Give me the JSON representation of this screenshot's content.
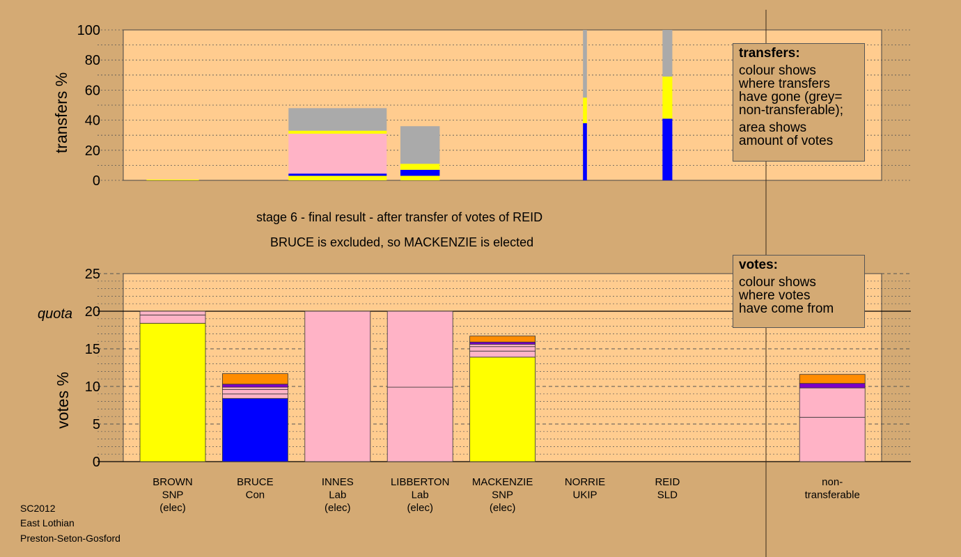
{
  "page": {
    "stage_line": "stage 6 - final result - after transfer of votes of REID",
    "result_line": "BRUCE is excluded, so MACKENZIE is elected",
    "footer": [
      "SC2012",
      "East Lothian",
      "Preston-Seton-Gosford"
    ]
  },
  "legend_transfers": {
    "title": "transfers:",
    "line1": "colour shows",
    "line2": "where transfers",
    "line3": "have gone (grey=",
    "line4": "non-transferable);",
    "line5": "area shows",
    "line6": "amount of votes"
  },
  "legend_votes": {
    "title": "votes:",
    "line1": "colour shows",
    "line2": "where votes",
    "line3": "have come from"
  },
  "colors": {
    "background": "#d4aa74",
    "plot_area": "#ffcc8f",
    "snp": "#ffff00",
    "con": "#0000ff",
    "lab": "#ffb3c6",
    "ukip": "#7b00c8",
    "sld": "#ff8c00",
    "nontransferable": "#aaaaaa"
  },
  "chart_data": [
    {
      "type": "bar",
      "name": "transfers",
      "ylabel": "transfers %",
      "ylim": [
        0,
        100
      ],
      "yticks": [
        0,
        20,
        40,
        60,
        80,
        100
      ],
      "bars": [
        {
          "column": 0,
          "width": 0.8,
          "segments": [
            {
              "color": "snp",
              "value": 0.5
            }
          ]
        },
        {
          "column": 2,
          "width": 1.5,
          "segments": [
            {
              "color": "snp",
              "value": 3
            },
            {
              "color": "con",
              "value": 1.5
            },
            {
              "color": "lab",
              "value": 26.5
            },
            {
              "color": "snp",
              "value": 2
            },
            {
              "color": "nontransferable",
              "value": 15
            }
          ]
        },
        {
          "column": 3,
          "width": 0.6,
          "segments": [
            {
              "color": "snp",
              "value": 3
            },
            {
              "color": "con",
              "value": 4
            },
            {
              "color": "snp",
              "value": 4
            },
            {
              "color": "nontransferable",
              "value": 25
            }
          ]
        },
        {
          "column": 5,
          "width": 0.06,
          "segments": [
            {
              "color": "con",
              "value": 38
            },
            {
              "color": "snp",
              "value": 17
            },
            {
              "color": "nontransferable",
              "value": 45
            }
          ]
        },
        {
          "column": 6,
          "width": 0.15,
          "segments": [
            {
              "color": "con",
              "value": 41
            },
            {
              "color": "snp",
              "value": 28
            },
            {
              "color": "nontransferable",
              "value": 31
            }
          ]
        }
      ]
    },
    {
      "type": "bar",
      "name": "votes",
      "ylabel": "votes %",
      "ylim": [
        0,
        25
      ],
      "yticks": [
        0,
        5,
        10,
        15,
        20,
        25
      ],
      "quota": 20,
      "quota_label": "quota",
      "categories": [
        [
          "BROWN",
          "SNP",
          "(elec)"
        ],
        [
          "BRUCE",
          "Con"
        ],
        [
          "INNES",
          "Lab",
          "(elec)"
        ],
        [
          "LIBBERTON",
          "Lab",
          "(elec)"
        ],
        [
          "MACKENZIE",
          "SNP",
          "(elec)"
        ],
        [
          "NORRIE",
          "UKIP"
        ],
        [
          "REID",
          "SLD"
        ],
        [],
        [
          "non-",
          "transferable"
        ]
      ],
      "stacks": [
        [
          {
            "color": "snp",
            "value": 18.4
          },
          {
            "color": "lab",
            "value": 1.1
          },
          {
            "color": "lab",
            "value": 0.5
          }
        ],
        [
          {
            "color": "con",
            "value": 8.4
          },
          {
            "color": "lab",
            "value": 0.6
          },
          {
            "color": "lab",
            "value": 0.6
          },
          {
            "color": "lab",
            "value": 0.3
          },
          {
            "color": "ukip",
            "value": 0.4
          },
          {
            "color": "sld",
            "value": 1.4
          }
        ],
        [
          {
            "color": "lab",
            "value": 20
          }
        ],
        [
          {
            "color": "lab",
            "value": 9.9
          },
          {
            "color": "lab",
            "value": 10.1
          }
        ],
        [
          {
            "color": "snp",
            "value": 13.9
          },
          {
            "color": "lab",
            "value": 0.8
          },
          {
            "color": "lab",
            "value": 0.6
          },
          {
            "color": "lab",
            "value": 0.3
          },
          {
            "color": "ukip",
            "value": 0.3
          },
          {
            "color": "sld",
            "value": 0.8
          }
        ],
        [],
        [],
        [],
        [
          {
            "color": "lab",
            "value": 5.9
          },
          {
            "color": "lab",
            "value": 3.9
          },
          {
            "color": "ukip",
            "value": 0.6
          },
          {
            "color": "sld",
            "value": 1.2
          }
        ]
      ]
    }
  ]
}
